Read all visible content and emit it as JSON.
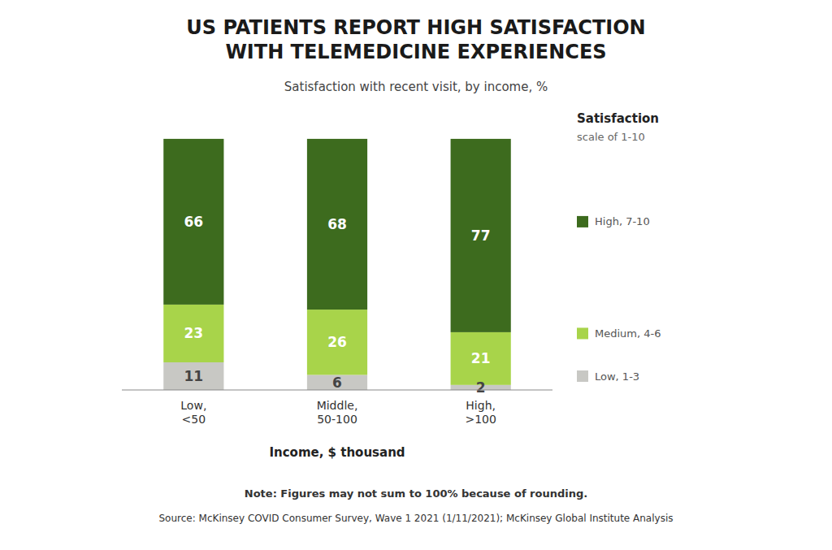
{
  "chart_data": {
    "type": "bar",
    "stacked": true,
    "title": "US PATIENTS REPORT HIGH SATISFACTION\nWITH TELEMEDICINE EXPERIENCES",
    "subtitle": "Satisfaction with recent visit, by income, %",
    "xlabel": "Income, $ thousand",
    "categories": [
      "Low,\n<50",
      "Middle,\n50-100",
      "High,\n>100"
    ],
    "series": [
      {
        "name": "Low, 1-3",
        "color": "#c8c8c4",
        "values": [
          11,
          6,
          2
        ]
      },
      {
        "name": "Medium, 4-6",
        "color": "#a8d44a",
        "values": [
          23,
          26,
          21
        ]
      },
      {
        "name": "High, 7-10",
        "color": "#3d6b1e",
        "values": [
          66,
          68,
          77
        ]
      }
    ],
    "ylim": [
      0,
      110
    ],
    "tick_labels": "x",
    "data_labels": true,
    "grid": false,
    "legend": "right",
    "legend_title": "Satisfaction",
    "legend_subtitle": "scale of 1-10",
    "note": "Note: Figures may not sum to 100% because of rounding.",
    "source": "Source: McKinsey COVID Consumer Survey, Wave 1 2021 (1/11/2021); McKinsey Global Institute Analysis"
  }
}
